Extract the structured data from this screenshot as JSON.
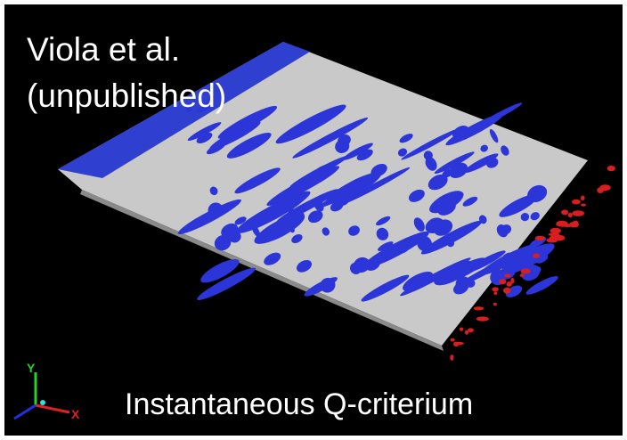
{
  "caption": {
    "line1": "Viola et al.",
    "line2": "(unpublished)"
  },
  "label": "Instantaneous Q-criterium",
  "axes": {
    "y": "Y",
    "x": "X"
  }
}
